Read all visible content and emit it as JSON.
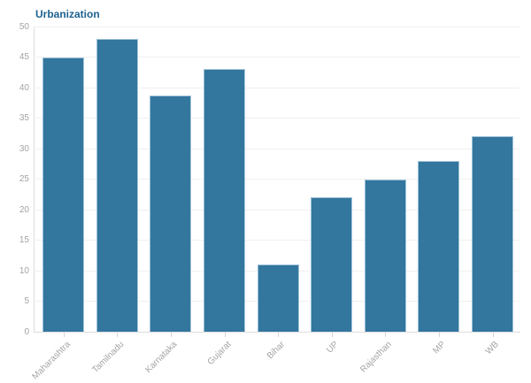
{
  "title": "Urbanization",
  "colors": {
    "bar_fill": "#33769e",
    "bar_border": "#9dc2d8",
    "title": "#1e618f",
    "axis_label": "#a3a3a3",
    "gridline": "#f0f0f0",
    "axis_line": "#dcdcdc",
    "tick": "#d4d4d4",
    "background": "#ffffff"
  },
  "chart_data": {
    "type": "bar",
    "title": "Urbanization",
    "categories": [
      "Maharashtra",
      "Tamilnadu",
      "Karnataka",
      "Gujarat",
      "Bihar",
      "UP",
      "Rajasthan",
      "MP",
      "WB"
    ],
    "values": [
      45,
      48,
      38.7,
      43,
      11,
      22,
      25,
      28,
      32
    ],
    "xlabel": "",
    "ylabel": "",
    "ylim": [
      0,
      50
    ],
    "yticks": [
      0,
      5,
      10,
      15,
      20,
      25,
      30,
      35,
      40,
      45,
      50
    ],
    "grid": true,
    "legend": "none",
    "bar_orientation": "vertical",
    "x_label_rotation_deg": -45
  }
}
